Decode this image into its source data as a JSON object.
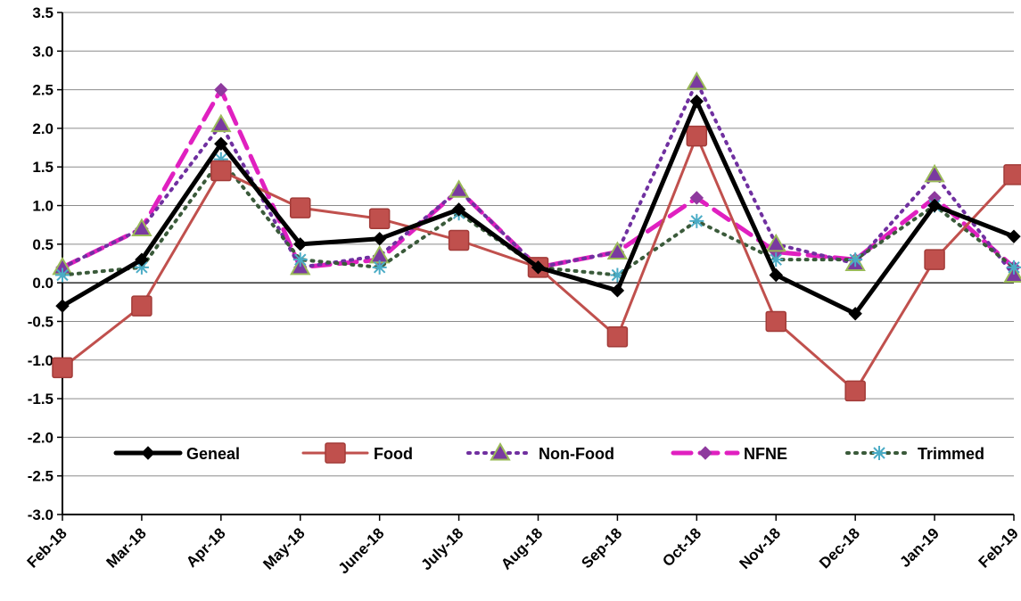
{
  "chart_data": {
    "type": "line",
    "title": "",
    "xlabel": "",
    "ylabel": "",
    "ylim": [
      -3.0,
      3.5
    ],
    "ytick_step": 0.5,
    "y_ticks": [
      "3.5",
      "3.0",
      "2.5",
      "2.0",
      "1.5",
      "1.0",
      "0.5",
      "0.0",
      "-0.5",
      "-1.0",
      "-1.5",
      "-2.0",
      "-2.5",
      "-3.0"
    ],
    "grid": true,
    "legend_position": "bottom-inside",
    "categories": [
      "Feb-18",
      "Mar-18",
      "Apr-18",
      "May-18",
      "June-18",
      "July-18",
      "Aug-18",
      "Sep-18",
      "Oct-18",
      "Nov-18",
      "Dec-18",
      "Jan-19",
      "Feb-19"
    ],
    "series": [
      {
        "name": "Geneal",
        "color": "#000000",
        "style": "solid",
        "marker": "diamond",
        "values": [
          -0.3,
          0.3,
          1.8,
          0.5,
          0.57,
          0.95,
          0.2,
          -0.1,
          2.35,
          0.1,
          -0.4,
          1.0,
          0.6
        ]
      },
      {
        "name": "Food",
        "color": "#C0504D",
        "style": "solid",
        "marker": "square",
        "values": [
          -1.1,
          -0.3,
          1.45,
          0.97,
          0.83,
          0.55,
          0.2,
          -0.7,
          1.9,
          -0.5,
          -1.4,
          0.3,
          1.4
        ]
      },
      {
        "name": "Non-Food",
        "color": "#7030A0",
        "style": "dotted",
        "marker": "triangle",
        "values": [
          0.2,
          0.7,
          2.05,
          0.2,
          0.35,
          1.2,
          0.2,
          0.4,
          2.6,
          0.5,
          0.25,
          1.4,
          0.1
        ]
      },
      {
        "name": "NFNE",
        "color": "#E020C0",
        "style": "dashed",
        "marker": "diamond",
        "values": [
          0.2,
          0.7,
          2.5,
          0.2,
          0.3,
          1.2,
          0.2,
          0.4,
          1.1,
          0.4,
          0.3,
          1.1,
          0.2
        ]
      },
      {
        "name": "Trimmed",
        "color": "#3A5A3A",
        "style": "dotted",
        "marker": "star",
        "values": [
          0.1,
          0.2,
          1.6,
          0.3,
          0.2,
          0.9,
          0.2,
          0.1,
          0.8,
          0.3,
          0.3,
          1.0,
          0.2
        ]
      }
    ]
  }
}
